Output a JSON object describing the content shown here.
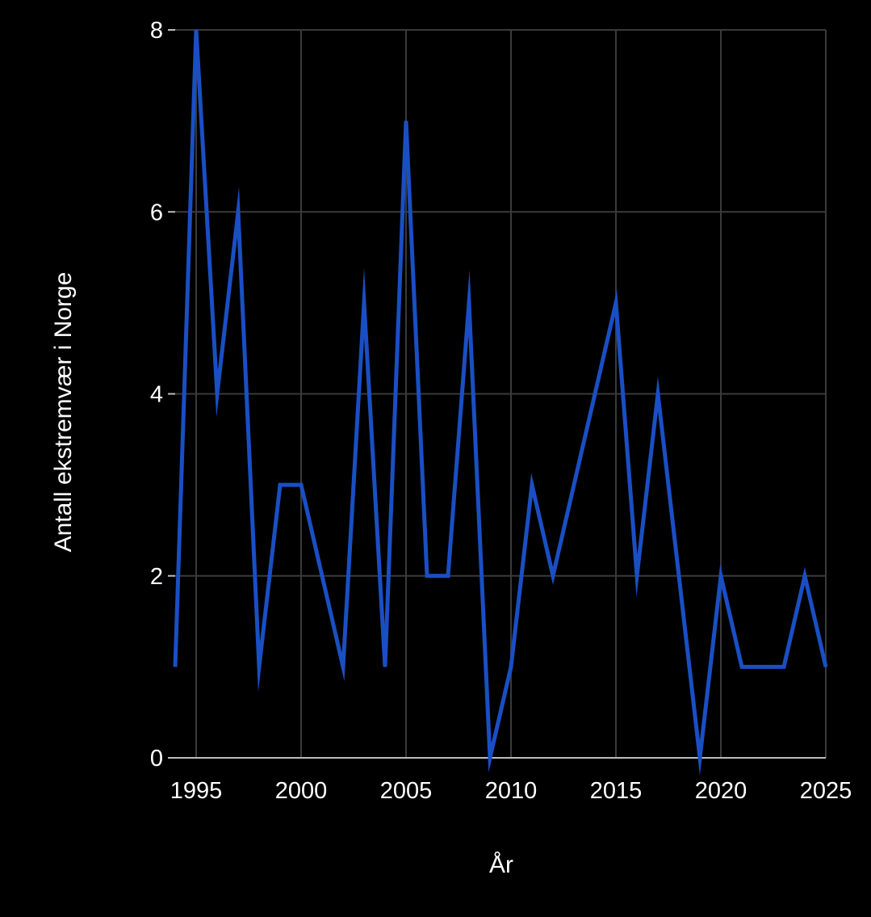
{
  "chart_data": {
    "type": "line",
    "title": "",
    "xlabel": "År",
    "ylabel": "Antall ekstremvær i Norge",
    "xlim": [
      1994,
      2025
    ],
    "ylim": [
      0,
      8
    ],
    "x_ticks": [
      1995,
      2000,
      2005,
      2010,
      2015,
      2020,
      2025
    ],
    "x_tick_labels": [
      "1995",
      "2000",
      "2005",
      "2010",
      "2015",
      "2020",
      "2025"
    ],
    "y_ticks": [
      0,
      2,
      4,
      6,
      8
    ],
    "y_tick_labels": [
      "0",
      "2",
      "4",
      "6",
      "8"
    ],
    "grid": true,
    "legend": "none",
    "series": [
      {
        "name": "Antall ekstremvær i Norge",
        "color": "#1a4fc4",
        "x": [
          1994,
          1995,
          1996,
          1997,
          1998,
          1999,
          2000,
          2001,
          2002,
          2003,
          2004,
          2005,
          2006,
          2007,
          2008,
          2009,
          2010,
          2011,
          2012,
          2013,
          2014,
          2015,
          2016,
          2017,
          2018,
          2019,
          2020,
          2021,
          2022,
          2023,
          2024,
          2025
        ],
        "values": [
          1,
          8,
          4,
          6,
          1,
          3,
          3,
          2,
          1,
          5,
          1,
          7,
          2,
          2,
          5,
          0,
          1,
          3,
          2,
          3,
          4,
          5,
          2,
          4,
          2,
          0,
          2,
          1,
          1,
          1,
          2,
          1
        ]
      }
    ]
  },
  "colors": {
    "background": "#000000",
    "grid": "#3a3a3a",
    "axis": "#bdbdbd",
    "text": "#ffffff"
  }
}
